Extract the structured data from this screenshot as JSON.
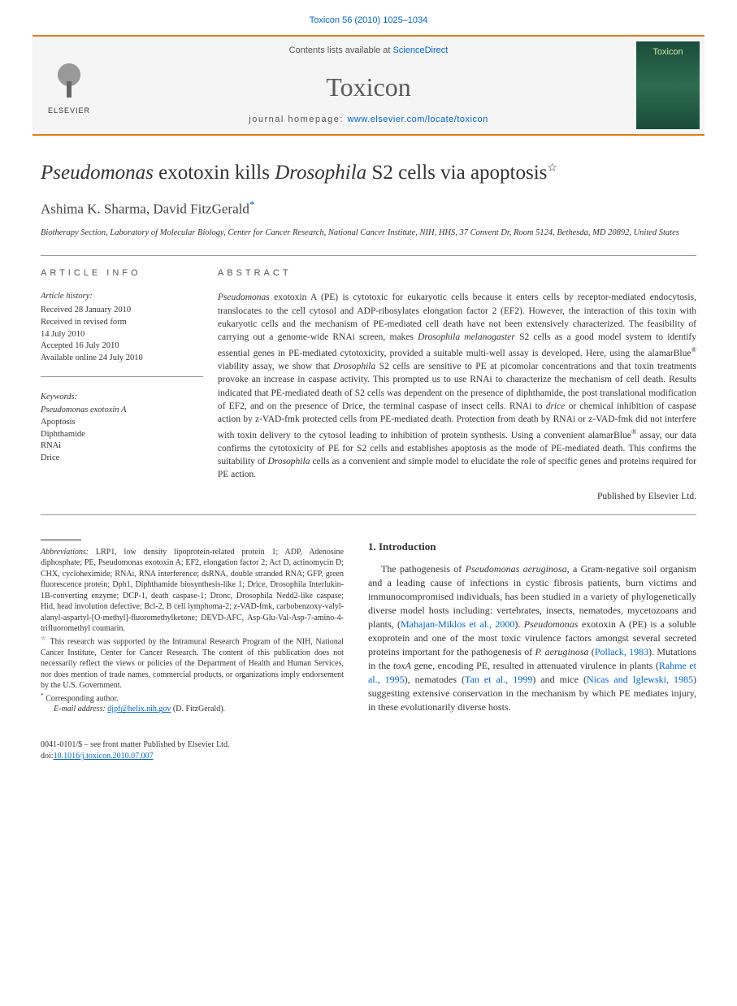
{
  "header": {
    "citation": "Toxicon 56 (2010) 1025–1034",
    "contents_prefix": "Contents lists available at ",
    "sciencedirect": "ScienceDirect",
    "journal": "Toxicon",
    "homepage_prefix": "journal homepage: ",
    "homepage_url": "www.elsevier.com/locate/toxicon",
    "elsevier": "ELSEVIER",
    "cover_label": "Toxicon"
  },
  "title": {
    "html": "<em>Pseudomonas</em> exotoxin kills <em>Drosophila</em> S2 cells via apoptosis",
    "star": "☆"
  },
  "authors": {
    "list": "Ashima K. Sharma, David FitzGerald",
    "corr": "*"
  },
  "affiliation": "Biotherapy Section, Laboratory of Molecular Biology, Center for Cancer Research, National Cancer Institute, NIH, HHS, 37 Convent Dr, Room 5124, Bethesda, MD 20892, United States",
  "info": {
    "label": "ARTICLE INFO",
    "history_head": "Article history:",
    "received": "Received 28 January 2010",
    "revised1": "Received in revised form",
    "revised2": "14 July 2010",
    "accepted": "Accepted 16 July 2010",
    "online": "Available online 24 July 2010",
    "keywords_head": "Keywords:",
    "kw1": "Pseudomonas exotoxin A",
    "kw2": "Apoptosis",
    "kw3": "Diphthamide",
    "kw4": "RNAi",
    "kw5": "Drice"
  },
  "abstract": {
    "label": "ABSTRACT",
    "text": "<em>Pseudomonas</em> exotoxin A (PE) is cytotoxic for eukaryotic cells because it enters cells by receptor-mediated endocytosis, translocates to the cell cytosol and ADP-ribosylates elongation factor 2 (EF2). However, the interaction of this toxin with eukaryotic cells and the mechanism of PE-mediated cell death have not been extensively characterized. The feasibility of carrying out a genome-wide RNAi screen, makes <em>Drosophila melanogaster</em> S2 cells as a good model system to identify essential genes in PE-mediated cytotoxicity, provided a suitable multi-well assay is developed. Here, using the alamarBlue<sup>®</sup> viability assay, we show that <em>Drosophila</em> S2 cells are sensitive to PE at picomolar concentrations and that toxin treatments provoke an increase in caspase activity. This prompted us to use RNAi to characterize the mechanism of cell death. Results indicated that PE-mediated death of S2 cells was dependent on the presence of diphthamide, the post translational modification of EF2, and on the presence of Drice, the terminal caspase of insect cells. RNAi to <em>drice</em> or chemical inhibition of caspase action by z-VAD-fmk protected cells from PE-mediated death. Protection from death by RNAi or z-VAD-fmk did not interfere with toxin delivery to the cytosol leading to inhibition of protein synthesis. Using a convenient alamarBlue<sup>®</sup> assay, our data confirms the cytotoxicity of PE for S2 cells and establishes apoptosis as the mode of PE-mediated death. This confirms the suitability of <em>Drosophila</em> cells as a convenient and simple model to elucidate the role of specific genes and proteins required for PE action.",
    "publisher": "Published by Elsevier Ltd."
  },
  "footnotes": {
    "abbrev_label": "Abbreviations:",
    "abbrev": " LRP1, low density lipoprotein-related protein 1; ADP, Adenosine diphosphate; PE, Pseudomonas exotoxin A; EF2, elongation factor 2; Act D, actinomycin D; CHX, cycloheximide; RNAi, RNA interference; dsRNA, double stranded RNA; GFP, green fluorescence protein; Dph1, Diphthamide biosynthesis-like 1; Drice, Drosophila Interlukin-1B-converting enzyme; DCP-1, death caspase-1; Dronc, Drosophila Nedd2-like caspase; Hid, head involution defective; Bcl-2, B cell lymphoma-2; z-VAD-fmk, carbobenzoxy-valyl-alanyl-aspartyl-[O-methyl]-fluoromethylketone; DEVD-AFC, Asp-Glu-Val-Asp-7-amino-4-trifluoromethyl coumarin.",
    "funding_star": "☆",
    "funding": " This research was supported by the Intramural Research Program of the NIH, National Cancer Institute, Center for Cancer Research. The content of this publication does not necessarily reflect the views or policies of the Department of Health and Human Services, nor does mention of trade names, commercial products, or organizations imply endorsement by the U.S. Government.",
    "corr_star": "*",
    "corr_label": " Corresponding author.",
    "email_label": "E-mail address:",
    "email": "djpf@helix.nih.gov",
    "email_suffix": " (D. FitzGerald)."
  },
  "intro": {
    "head": "1.  Introduction",
    "text": "The pathogenesis of <em>Pseudomonas aeruginosa</em>, a Gram-negative soil organism and a leading cause of infections in cystic fibrosis patients, burn victims and immunocompromised individuals, has been studied in a variety of phylogenetically diverse model hosts including: vertebrates, insects, nematodes, mycetozoans and plants, (<span class='cite-link'>Mahajan-Miklos et al., 2000</span>). <em>Pseudomonas</em> exotoxin A (PE) is a soluble exoprotein and one of the most toxic virulence factors amongst several secreted proteins important for the pathogenesis of <em>P. aeruginosa</em> (<span class='cite-link'>Pollack, 1983</span>). Mutations in the <em>toxA</em> gene, encoding PE, resulted in attenuated virulence in plants (<span class='cite-link'>Rahme et al., 1995</span>), nematodes (<span class='cite-link'>Tan et al., 1999</span>) and mice (<span class='cite-link'>Nicas and Iglewski, 1985</span>) suggesting extensive conservation in the mechanism by which PE mediates injury, in these evolutionarily diverse hosts."
  },
  "doi": {
    "line1": "0041-0101/$ – see front matter Published by Elsevier Ltd.",
    "line2_prefix": "doi:",
    "line2": "10.1016/j.toxicon.2010.07.007"
  }
}
